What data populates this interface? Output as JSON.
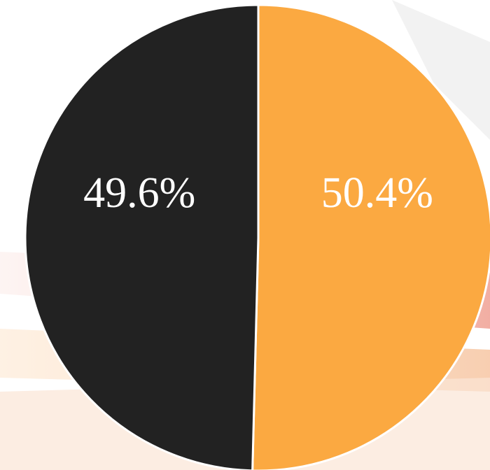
{
  "chart_data": {
    "type": "pie",
    "values": [
      50.4,
      49.6
    ],
    "value_labels": [
      "50.4%",
      "49.6%"
    ],
    "colors": [
      "#fba941",
      "#222222"
    ]
  }
}
